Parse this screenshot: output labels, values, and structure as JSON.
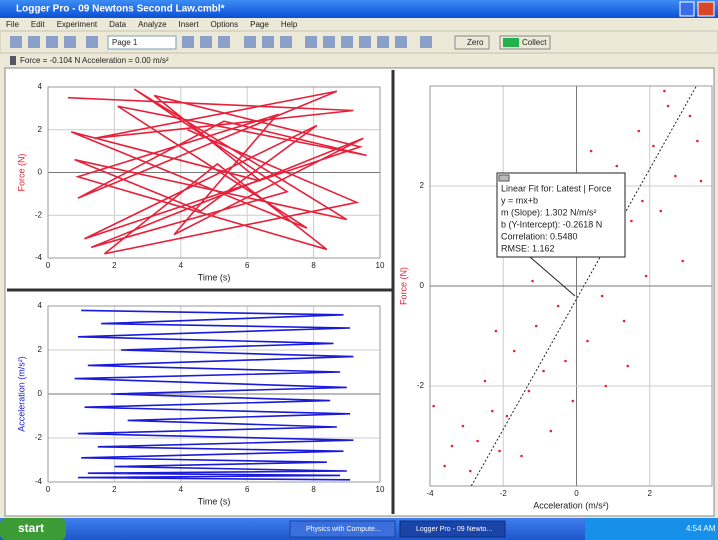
{
  "window_title": "Logger Pro - 09 Newtons Second Law.cmbl*",
  "menu": [
    "File",
    "Edit",
    "Experiment",
    "Data",
    "Analyze",
    "Insert",
    "Options",
    "Page",
    "Help"
  ],
  "toolbar": {
    "page": "Page 1",
    "zero": "Zero",
    "collect": "Collect"
  },
  "status": "Force = -0.104 N  Acceleration = 0.00 m/s²",
  "graphs": [
    {
      "type": "line",
      "color": "#e8213a",
      "x_label": "Time (s)",
      "y_label": "Force (N)",
      "xlim": [
        0,
        10
      ],
      "ylim": [
        -4,
        4
      ],
      "xticks": [
        0,
        2,
        4,
        6,
        8,
        10
      ],
      "yticks": [
        -4,
        -2,
        0,
        2,
        4
      ],
      "x": [
        0.6,
        9.2,
        1.4,
        8.7,
        0.9,
        5.3,
        9.6,
        2.1,
        7.8,
        0.7,
        6.4,
        3.2,
        9.4,
        1.1,
        8.1,
        4.6,
        0.8,
        9.0,
        2.6,
        7.2,
        1.3,
        9.5,
        3.8,
        6.9,
        0.9,
        8.4,
        5.1,
        1.7,
        9.3,
        4.2
      ],
      "y": [
        3.5,
        2.9,
        1.6,
        3.8,
        -1.2,
        2.4,
        0.8,
        3.1,
        -2.6,
        1.9,
        -0.4,
        3.6,
        1.2,
        -3.1,
        2.2,
        -1.8,
        0.6,
        -2.2,
        3.9,
        -0.9,
        -3.5,
        1.6,
        -2.9,
        2.7,
        -0.2,
        -3.6,
        0.4,
        -3.8,
        -1.4,
        2.0
      ]
    },
    {
      "type": "line",
      "color": "#1a1adb",
      "x_label": "Time (s)",
      "y_label": "Acceleration (m/s²)",
      "xlim": [
        0,
        10
      ],
      "ylim": [
        -4,
        4
      ],
      "xticks": [
        0,
        2,
        4,
        6,
        8,
        10
      ],
      "yticks": [
        -4,
        -2,
        0,
        2,
        4
      ],
      "x": [
        1.0,
        8.9,
        1.6,
        9.1,
        0.9,
        8.6,
        2.2,
        9.2,
        1.2,
        8.8,
        0.8,
        9.0,
        1.9,
        8.5,
        1.1,
        9.1,
        2.4,
        8.7,
        0.9,
        9.2,
        1.5,
        8.9,
        1.0,
        8.4,
        2.0,
        9.0,
        1.2,
        8.8,
        0.9,
        9.1
      ],
      "y": [
        3.8,
        3.6,
        3.2,
        3.0,
        2.6,
        2.3,
        2.0,
        1.7,
        1.3,
        1.0,
        0.7,
        0.3,
        0.0,
        -0.3,
        -0.6,
        -0.9,
        -1.2,
        -1.5,
        -1.8,
        -2.1,
        -2.4,
        -2.6,
        -2.9,
        -3.1,
        -3.3,
        -3.5,
        -3.6,
        -3.7,
        -3.8,
        -3.9
      ]
    },
    {
      "type": "scatter",
      "color": "#e8213a",
      "x_label": "Acceleration (m/s²)",
      "y_label": "Force (N)",
      "xlim": [
        -4,
        3.7
      ],
      "ylim": [
        -4,
        4
      ],
      "xticks": [
        -4,
        -2,
        0,
        2
      ],
      "yticks": [
        -2,
        0,
        2
      ],
      "x": [
        -3.9,
        -3.6,
        -3.4,
        -3.1,
        -2.9,
        -2.7,
        -2.5,
        -2.3,
        -2.1,
        -1.9,
        -1.7,
        -1.5,
        -1.3,
        -1.1,
        -0.9,
        -0.7,
        -0.5,
        -0.3,
        -0.1,
        0.1,
        0.3,
        0.5,
        0.7,
        0.9,
        1.1,
        1.3,
        1.5,
        1.7,
        1.9,
        2.1,
        2.3,
        2.5,
        2.7,
        2.9,
        3.1,
        3.3,
        -2.2,
        -1.2,
        0.4,
        1.4,
        2.4,
        -0.6,
        0.8,
        1.8,
        3.4
      ],
      "y": [
        -2.4,
        -3.6,
        -3.2,
        -2.8,
        -3.7,
        -3.1,
        -1.9,
        -2.5,
        -3.3,
        -2.6,
        -1.3,
        -3.4,
        -2.1,
        -0.8,
        -1.7,
        -2.9,
        -0.4,
        -1.5,
        -2.3,
        0.6,
        -1.1,
        1.9,
        -0.2,
        0.9,
        2.4,
        -0.7,
        1.3,
        3.1,
        0.2,
        2.8,
        1.5,
        3.6,
        2.2,
        0.5,
        3.4,
        2.9,
        -0.9,
        0.1,
        2.7,
        -1.6,
        3.9,
        1.1,
        -2.0,
        1.7,
        2.1
      ],
      "fit": {
        "slope": 1.302,
        "intercept": -0.2618,
        "lines": [
          "Linear Fit for: Latest | Force",
          "y = mx+b",
          "m (Slope): 1.302 N/m/s²",
          "b (Y-Intercept): -0.2618 N",
          "Correlation: 0.5480",
          "RMSE: 1.162"
        ]
      }
    }
  ],
  "taskbar": {
    "start": "start",
    "tasks": [
      "Physics with Compute...",
      "Logger Pro - 09 Newto..."
    ],
    "clock": "4:54 AM"
  }
}
